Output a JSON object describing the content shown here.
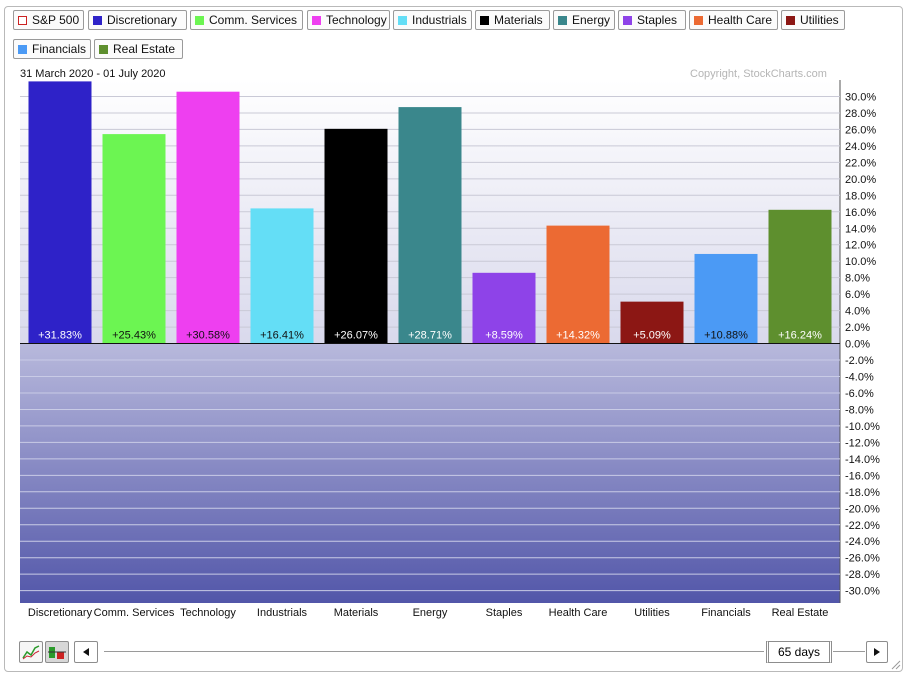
{
  "legend": [
    {
      "label": "S&P 500",
      "color": "#ffffff",
      "border": "#cc2222"
    },
    {
      "label": "Discretionary",
      "color": "#2e22c8"
    },
    {
      "label": "Comm. Services",
      "color": "#6cf552"
    },
    {
      "label": "Technology",
      "color": "#ee3ff0"
    },
    {
      "label": "Industrials",
      "color": "#64def6"
    },
    {
      "label": "Materials",
      "color": "#000000"
    },
    {
      "label": "Energy",
      "color": "#3a878c"
    },
    {
      "label": "Staples",
      "color": "#8e43e8"
    },
    {
      "label": "Health Care",
      "color": "#ec6a33"
    },
    {
      "label": "Utilities",
      "color": "#8c1714"
    },
    {
      "label": "Financials",
      "color": "#4b9af5"
    },
    {
      "label": "Real Estate",
      "color": "#5e8f2e"
    }
  ],
  "header": {
    "date_range": "31 March 2020 - 01 July 2020",
    "copyright": "Copyright, StockCharts.com"
  },
  "chart_data": {
    "type": "bar",
    "categories": [
      "Discretionary",
      "Comm. Services",
      "Technology",
      "Industrials",
      "Materials",
      "Energy",
      "Staples",
      "Health Care",
      "Utilities",
      "Financials",
      "Real Estate"
    ],
    "values": [
      31.83,
      25.43,
      30.58,
      16.41,
      26.07,
      28.71,
      8.59,
      14.32,
      5.09,
      10.88,
      16.24
    ],
    "value_labels": [
      "+31.83%",
      "+25.43%",
      "+30.58%",
      "+16.41%",
      "+26.07%",
      "+28.71%",
      "+8.59%",
      "+14.32%",
      "+5.09%",
      "+10.88%",
      "+16.24%"
    ],
    "colors": [
      "#2e22c8",
      "#6cf552",
      "#ee3ff0",
      "#64def6",
      "#000000",
      "#3a878c",
      "#8e43e8",
      "#ec6a33",
      "#8c1714",
      "#4b9af5",
      "#5e8f2e"
    ],
    "label_colors": [
      "#ffffff",
      "#111111",
      "#111111",
      "#111111",
      "#ffffff",
      "#ffffff",
      "#ffffff",
      "#ffffff",
      "#ffffff",
      "#111111",
      "#ffffff"
    ],
    "ylim": [
      -31.5,
      32
    ],
    "yticks": [
      30,
      28,
      26,
      24,
      22,
      20,
      18,
      16,
      14,
      12,
      10,
      8,
      6,
      4,
      2,
      0,
      -2,
      -4,
      -6,
      -8,
      -10,
      -12,
      -14,
      -16,
      -18,
      -20,
      -22,
      -24,
      -26,
      -28,
      -30
    ],
    "ytick_labels": [
      "30.0%",
      "28.0%",
      "26.0%",
      "24.0%",
      "22.0%",
      "20.0%",
      "18.0%",
      "16.0%",
      "14.0%",
      "12.0%",
      "10.0%",
      "8.0%",
      "6.0%",
      "4.0%",
      "2.0%",
      "0.0%",
      "-2.0%",
      "-4.0%",
      "-6.0%",
      "-8.0%",
      "-10.0%",
      "-12.0%",
      "-14.0%",
      "-16.0%",
      "-18.0%",
      "-20.0%",
      "-22.0%",
      "-24.0%",
      "-26.0%",
      "-28.0%",
      "-30.0%"
    ],
    "grid": true,
    "xlabel": "",
    "ylabel": ""
  },
  "controls": {
    "period": "65 days",
    "line_chart_icon": "line-chart-icon",
    "bar_chart_icon": "bar-chart-icon",
    "scroll_left_icon": "triangle-left-icon",
    "scroll_right_icon": "triangle-right-icon"
  }
}
